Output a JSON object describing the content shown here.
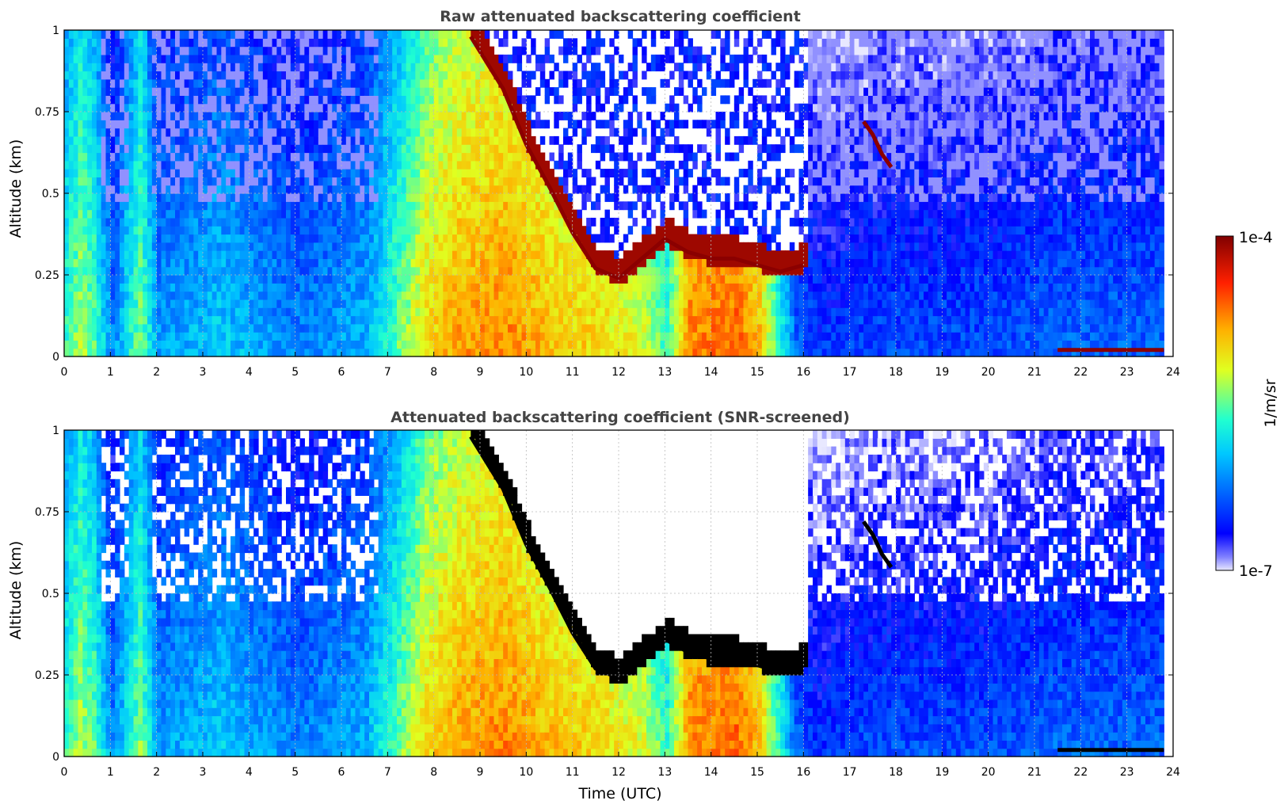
{
  "chart_data": [
    {
      "type": "heatmap",
      "title": "Raw attenuated backscattering coefficient",
      "xlabel": "",
      "ylabel": "Altitude (km)",
      "xlim": [
        0,
        24
      ],
      "ylim": [
        0,
        1
      ],
      "x_ticks": [
        "0",
        "1",
        "2",
        "3",
        "4",
        "5",
        "6",
        "7",
        "8",
        "9",
        "10",
        "11",
        "12",
        "13",
        "14",
        "15",
        "16",
        "17",
        "18",
        "19",
        "20",
        "21",
        "22",
        "23",
        "24"
      ],
      "y_ticks": [
        "0",
        "0.25",
        "0.5",
        "0.75",
        "1"
      ],
      "grid": true,
      "screened": false,
      "data_end_hour": 23.8,
      "colorbar": {
        "label": "1/m/sr",
        "min_label": "1e-7",
        "max_label": "1e-4",
        "scale": "log"
      },
      "intensity_profile": {
        "x_hours": [
          0,
          0.3,
          0.6,
          1.0,
          1.6,
          2.0,
          3.3,
          5.0,
          6.5,
          7.8,
          8.5,
          9.5,
          10.5,
          11.5,
          12.5,
          13.0,
          13.5,
          14.5,
          15.0,
          15.8,
          16.3,
          17.5,
          18.0,
          20.0,
          21.5,
          22.5,
          23.8
        ],
        "low_level_log10": [
          -5.6,
          -5.3,
          -5.5,
          -6.2,
          -5.4,
          -6.1,
          -5.9,
          -6.2,
          -6.0,
          -5.0,
          -4.8,
          -4.7,
          -4.9,
          -5.0,
          -5.2,
          -5.6,
          -4.7,
          -4.6,
          -4.9,
          -6.3,
          -6.5,
          -6.4,
          -6.4,
          -6.4,
          -6.3,
          -6.3,
          -6.3
        ]
      },
      "features": [
        {
          "label": "cloud layer",
          "x_hours": [
            8.8,
            9.5,
            10.0,
            10.5,
            11.0,
            11.5,
            12.0,
            12.5,
            13.0,
            13.5,
            14.0,
            14.5,
            15.0,
            15.5,
            16.0
          ],
          "altitude_km": [
            0.98,
            0.82,
            0.65,
            0.52,
            0.38,
            0.27,
            0.24,
            0.3,
            0.36,
            0.32,
            0.3,
            0.3,
            0.28,
            0.26,
            0.28
          ]
        },
        {
          "label": "elevated layer",
          "x_hours": [
            17.3,
            17.5,
            17.7,
            17.9
          ],
          "altitude_km": [
            0.72,
            0.68,
            0.62,
            0.58
          ]
        },
        {
          "label": "surface layer",
          "x_hours": [
            21.5,
            23.8
          ],
          "altitude_km": [
            0.02,
            0.02
          ]
        }
      ]
    },
    {
      "type": "heatmap",
      "title": "Attenuated backscattering coefficient (SNR-screened)",
      "xlabel": "Time (UTC)",
      "ylabel": "Altitude (km)",
      "xlim": [
        0,
        24
      ],
      "ylim": [
        0,
        1
      ],
      "x_ticks": [
        "0",
        "1",
        "2",
        "3",
        "4",
        "5",
        "6",
        "7",
        "8",
        "9",
        "10",
        "11",
        "12",
        "13",
        "14",
        "15",
        "16",
        "17",
        "18",
        "19",
        "20",
        "21",
        "22",
        "23",
        "24"
      ],
      "y_ticks": [
        "0",
        "0.25",
        "0.5",
        "0.75",
        "1"
      ],
      "grid": true,
      "screened": true,
      "data_end_hour": 23.8,
      "features": [
        {
          "label": "cloud layer",
          "x_hours": [
            8.8,
            9.5,
            10.0,
            10.5,
            11.0,
            11.5,
            12.0,
            12.5,
            13.0,
            13.5,
            14.0,
            14.5,
            15.0,
            15.5,
            16.0
          ],
          "altitude_km": [
            0.98,
            0.82,
            0.65,
            0.52,
            0.38,
            0.27,
            0.24,
            0.3,
            0.36,
            0.32,
            0.3,
            0.3,
            0.28,
            0.26,
            0.28
          ]
        },
        {
          "label": "elevated layer",
          "x_hours": [
            17.3,
            17.5,
            17.7,
            17.9
          ],
          "altitude_km": [
            0.72,
            0.68,
            0.62,
            0.58
          ]
        },
        {
          "label": "surface layer",
          "x_hours": [
            21.5,
            23.8
          ],
          "altitude_km": [
            0.02,
            0.02
          ]
        }
      ]
    }
  ],
  "colorbar": {
    "label": "1/m/sr",
    "min_label": "1e-7",
    "max_label": "1e-4"
  },
  "colors": {
    "title": "#444444",
    "grid": "#bbbbbb",
    "frame": "#000000",
    "screened_cloud_edge": "#000000"
  }
}
